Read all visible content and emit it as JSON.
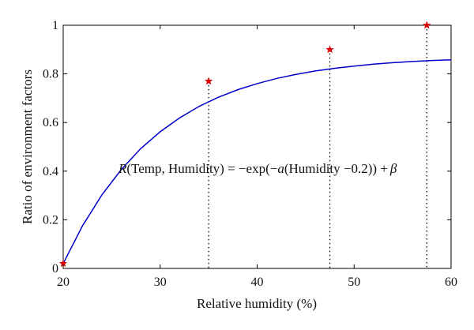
{
  "chart_data": {
    "type": "line",
    "xlabel": "Relative humidity (%)",
    "ylabel": "Ratio of environment factors",
    "xlim": [
      20,
      60
    ],
    "ylim": [
      0,
      1
    ],
    "x_ticks": [
      "20",
      "30",
      "40",
      "50",
      "60"
    ],
    "y_ticks": [
      "0",
      "0.2",
      "0.4",
      "0.6",
      "0.8",
      "1"
    ],
    "grid": false,
    "series": [
      {
        "style": "solid",
        "color": "#0000cc",
        "x": [
          20,
          22,
          24,
          26,
          28,
          30,
          32,
          34,
          36,
          38,
          40,
          42,
          44,
          46,
          48,
          50,
          52,
          54,
          56,
          58,
          60
        ],
        "y": [
          0.02,
          0.176,
          0.303,
          0.407,
          0.493,
          0.562,
          0.619,
          0.666,
          0.704,
          0.735,
          0.76,
          0.781,
          0.798,
          0.812,
          0.823,
          0.832,
          0.84,
          0.846,
          0.851,
          0.855,
          0.858
        ]
      },
      {
        "style": "marker",
        "marker": "star",
        "color": "#dd0000",
        "x": [
          20,
          35,
          47.5,
          57.5
        ],
        "y": [
          0.02,
          0.77,
          0.9,
          1.0
        ]
      }
    ],
    "reference_lines": {
      "style": "dotted",
      "color": "#000000",
      "x": [
        35,
        47.5,
        57.5
      ]
    }
  },
  "annotation": {
    "prefix": "R",
    "args": "(Temp, Humidity) = −exp(−",
    "coef": "a",
    "tail": "(Humidity −0.2)) +",
    "beta": "β"
  }
}
